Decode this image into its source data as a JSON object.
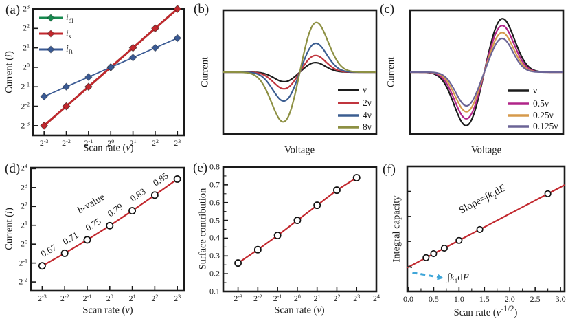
{
  "figure": {
    "background": "#ffffff",
    "text_color": "#1a1a1a",
    "accent_red": "#c2282e"
  },
  "panels": {
    "a": {
      "label": "(a)",
      "xlabel": {
        "pre": "Scan rate (",
        "it": "ν",
        "post": ")"
      },
      "ylabel": {
        "pre": "Current (",
        "it": "i",
        "post": ")"
      },
      "chart_data": {
        "type": "line",
        "subtype": "log2-log2 scatter with lines",
        "x_tick_base": 2,
        "y_tick_base": 2,
        "x_ticks_exp": [
          -3,
          -2,
          -1,
          0,
          1,
          2,
          3
        ],
        "y_ticks_exp": [
          -3,
          -2,
          -1,
          0,
          1,
          2,
          3
        ],
        "x_range_exp": [
          -3.5,
          3.3
        ],
        "y_range_exp": [
          -3.5,
          3.0
        ],
        "legend_position": "top-left",
        "series": [
          {
            "name": "i_dl",
            "label_main": "i",
            "label_sub": "dl",
            "color": "#17894f",
            "marker": "diamond",
            "line_width": 3,
            "x_exp": [
              -3,
              -2,
              -1,
              0,
              1,
              2,
              3
            ],
            "y_exp": [
              -3,
              -2,
              -1,
              0,
              1,
              2,
              3
            ]
          },
          {
            "name": "i_s",
            "label_main": "i",
            "label_sub": "s",
            "color": "#c2282e",
            "marker": "diamond",
            "line_width": 3,
            "x_exp": [
              -3,
              -2,
              -1,
              0,
              1,
              2,
              3
            ],
            "y_exp": [
              -3,
              -2,
              -1,
              0,
              1,
              2,
              3
            ]
          },
          {
            "name": "i_B",
            "label_main": "i",
            "label_sub": "B",
            "color": "#3a5a94",
            "marker": "diamond",
            "line_width": 1.8,
            "x_exp": [
              -3,
              -2,
              -1,
              0,
              1,
              2,
              3
            ],
            "y_exp": [
              -1.5,
              -1,
              -0.5,
              0,
              0.5,
              1,
              1.5
            ]
          }
        ]
      }
    },
    "b": {
      "label": "(b)",
      "xlabel": {
        "pre": "Voltage"
      },
      "ylabel": {
        "pre": "Current"
      },
      "chart_data": {
        "type": "line",
        "subtype": "cyclic-voltammetry curves, unlabeled axes",
        "anodic_peak_x": 0.6,
        "cathodic_peak_x": 0.4,
        "legend_position": "bottom-right",
        "series": [
          {
            "label": "ν",
            "color": "#1c1c1c",
            "amplitude": 0.16,
            "peak_width": 0.095
          },
          {
            "label": "2ν",
            "color": "#c0353e",
            "amplitude": 0.28,
            "peak_width": 0.1
          },
          {
            "label": "4ν",
            "color": "#3c5e91",
            "amplitude": 0.49,
            "peak_width": 0.106
          },
          {
            "label": "8ν",
            "color": "#8d9043",
            "amplitude": 0.86,
            "peak_width": 0.116
          }
        ]
      }
    },
    "c": {
      "label": "(c)",
      "xlabel": {
        "pre": "Voltage"
      },
      "ylabel": {
        "pre": "Current"
      },
      "chart_data": {
        "type": "line",
        "subtype": "cyclic-voltammetry curves, unlabeled axes",
        "anodic_peak_x": 0.6,
        "cathodic_peak_x": 0.37,
        "legend_position": "bottom-right",
        "series": [
          {
            "label": "ν",
            "color": "#1c1c1c",
            "amplitude": 0.9,
            "peak_width": 0.115
          },
          {
            "label": "0.5ν",
            "color": "#b02589",
            "amplitude": 0.78,
            "peak_width": 0.11
          },
          {
            "label": "0.25ν",
            "color": "#d69a4c",
            "amplitude": 0.66,
            "peak_width": 0.105
          },
          {
            "label": "0.125ν",
            "color": "#6b6496",
            "amplitude": 0.56,
            "peak_width": 0.1
          }
        ]
      }
    },
    "d": {
      "label": "(d)",
      "xlabel": {
        "pre": "Scan rate (",
        "it": "ν",
        "post": ")"
      },
      "ylabel": {
        "pre": "Current (",
        "it": "i",
        "post": ")"
      },
      "chart_data": {
        "type": "line",
        "subtype": "log2-log2 open-circle points on fitted line",
        "x_tick_base": 2,
        "y_tick_base": 2,
        "x_ticks_exp": [
          -3,
          -2,
          -1,
          0,
          1,
          2,
          3
        ],
        "y_ticks_exp": [
          -2,
          -1,
          0,
          1,
          2,
          3,
          4
        ],
        "x_range_exp": [
          -3.5,
          3.3
        ],
        "y_range_exp": [
          -2.47,
          4.05
        ],
        "line_color": "#c2282e",
        "x_exp": [
          -3,
          -2,
          -1,
          0,
          1,
          2,
          3
        ],
        "y_exp": [
          -1.15,
          -0.48,
          0.23,
          0.98,
          1.77,
          2.6,
          3.45
        ],
        "segment_labels": [
          "0.67",
          "0.71",
          "0.75",
          "0.79",
          "0.83",
          "0.85"
        ],
        "annotation": {
          "parts": [
            {
              "t": "b",
              "i": true
            },
            {
              "t": "-value"
            }
          ]
        }
      }
    },
    "e": {
      "label": "(e)",
      "xlabel": {
        "pre": "Scan rate (",
        "it": "ν",
        "post": ")"
      },
      "ylabel": {
        "pre": "Surface contribution"
      },
      "chart_data": {
        "type": "line",
        "subtype": "open-circle points on fitted line",
        "x_tick_base": 2,
        "x_ticks_exp": [
          -3,
          -2,
          -1,
          0,
          1,
          2,
          3,
          4
        ],
        "y_ticks": [
          0.1,
          0.2,
          0.3,
          0.4,
          0.5,
          0.6,
          0.7,
          0.8
        ],
        "y_minor_ticks": [
          0.15,
          0.25,
          0.35,
          0.45,
          0.55,
          0.65,
          0.75
        ],
        "x_range_exp": [
          -3.75,
          4.0
        ],
        "y_range": [
          0.1,
          0.8
        ],
        "line_color": "#c2282e",
        "x_exp": [
          -3,
          -2,
          -1,
          0,
          1,
          2,
          3
        ],
        "y": [
          0.26,
          0.335,
          0.415,
          0.5,
          0.585,
          0.67,
          0.74
        ]
      }
    },
    "f": {
      "label": "(f)",
      "xlabel": {
        "pre": "Scan rate (",
        "it": "ν",
        "sup": "-1/2",
        "post": ")"
      },
      "ylabel": {
        "pre": "Integral capacity"
      },
      "chart_data": {
        "type": "line",
        "subtype": "open-circle points on fitted line vs reciprocal sqrt scan rate",
        "x_ticks": [
          0.0,
          0.5,
          1.0,
          1.5,
          2.0,
          2.5,
          3.0
        ],
        "x_minor_ticks": [
          0.25,
          0.75,
          1.25,
          1.75,
          2.25,
          2.75
        ],
        "y_unlabeled_ticks": [
          0.2,
          0.4,
          0.6,
          0.8
        ],
        "x_range": [
          -0.02,
          3.08
        ],
        "y_range": [
          0,
          1
        ],
        "line_color": "#c2282e",
        "fit_line": {
          "intercept": 0.195,
          "slope": 0.213
        },
        "x": [
          0.35,
          0.5,
          0.71,
          1.0,
          1.41,
          2.75
        ],
        "y": [
          0.27,
          0.302,
          0.346,
          0.408,
          0.495,
          0.781
        ],
        "slope_label": {
          "parts": [
            {
              "t": "Slope=∫"
            },
            {
              "t": "k",
              "i": true
            },
            {
              "t": "2",
              "sub": true
            },
            {
              "t": "d"
            },
            {
              "t": "E",
              "i": true
            }
          ]
        },
        "k1_label": {
          "parts": [
            {
              "t": "∫"
            },
            {
              "t": "k",
              "i": true
            },
            {
              "t": "1",
              "sub": true
            },
            {
              "t": "d"
            },
            {
              "t": "E",
              "i": true
            }
          ]
        },
        "arrow_color": "#3fa6d9"
      }
    }
  }
}
